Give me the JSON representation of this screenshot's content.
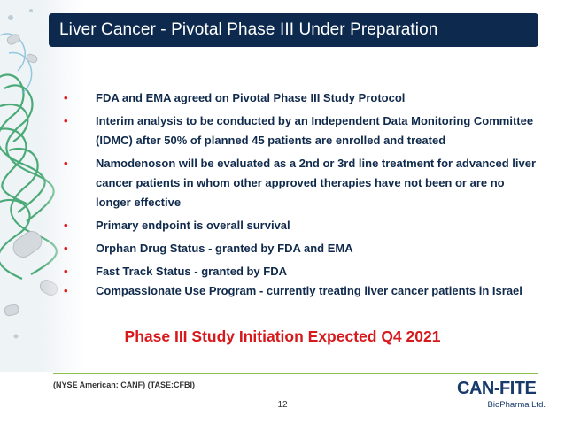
{
  "title": "Liver Cancer - Pivotal Phase III Under Preparation",
  "bullet_symbol": "•",
  "bullets": [
    "FDA and EMA agreed on Pivotal Phase III Study Protocol",
    "Interim analysis to be conducted by an Independent Data Monitoring Committee (IDMC) after 50% of planned 45 patients are enrolled and treated",
    "Namodenoson will be evaluated as a 2nd or 3rd line treatment for advanced liver cancer patients in whom other approved therapies have not been or are no longer effective",
    "Primary endpoint is overall survival",
    "Orphan Drug Status -  granted by FDA and EMA",
    "Fast Track Status - granted by FDA",
    "Compassionate Use Program - currently treating liver cancer patients in Israel"
  ],
  "callout": "Phase III Study Initiation Expected Q4 2021",
  "footer": {
    "ticker": "(NYSE American: CANF) (TASE:CFBI)",
    "page_number": "12",
    "logo_main": "CAN-FITE",
    "logo_sub": "BioPharma Ltd."
  },
  "colors": {
    "title_bar": "#0d2a4e",
    "body_text": "#102a4c",
    "accent_red": "#d7191c",
    "footer_rule": "#8cc152"
  }
}
